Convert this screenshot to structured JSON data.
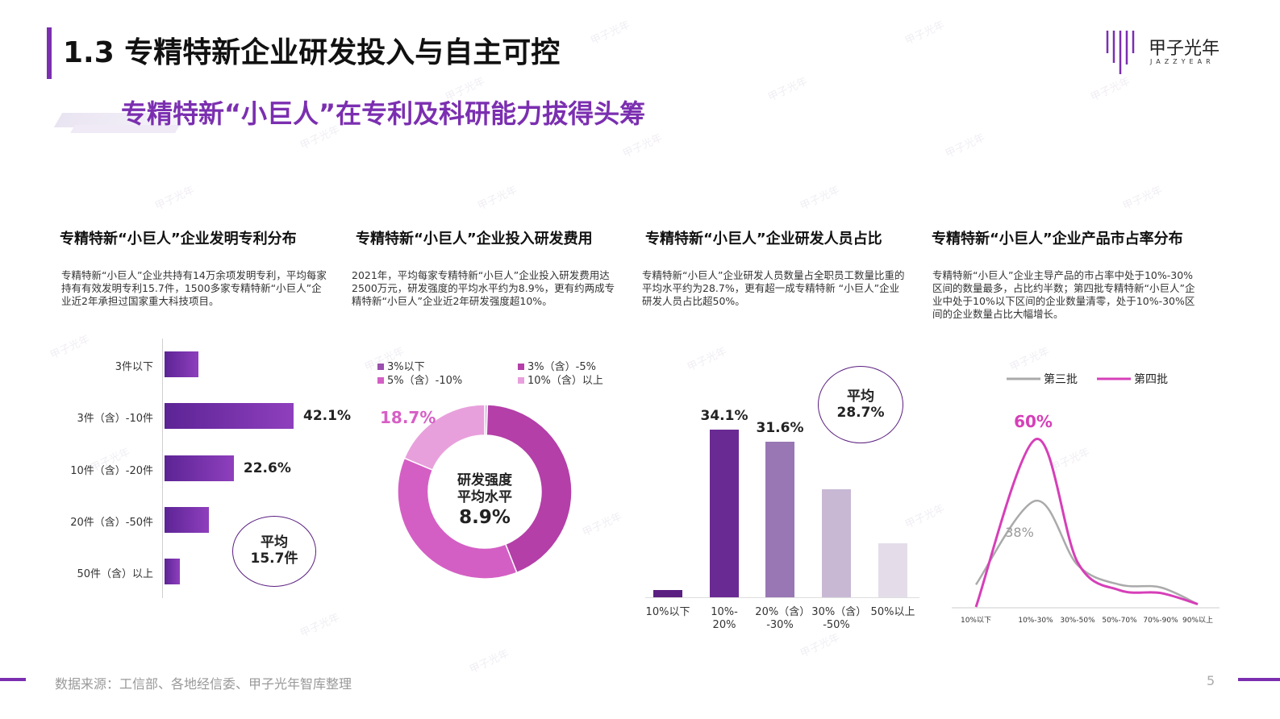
{
  "header": {
    "title": "1.3 专精特新企业研发投入与自主可控",
    "subtitle": "专精特新“小巨人”在专利及科研能力拔得头筹",
    "logo_text": "甲子光年",
    "logo_sub": "JAZZYEAR",
    "watermark": "甲子光年"
  },
  "sections": [
    {
      "title": "专精特新“小巨人”企业发明专利分布",
      "desc": "专精特新“小巨人”企业共持有14万余项发明专利，平均每家持有有效发明专利15.7件，1500多家专精特新“小巨人”企业近2年承担过国家重大科技项目。",
      "note": [
        "平均",
        "15.7件"
      ]
    },
    {
      "title": "专精特新“小巨人”企业投入研发费用",
      "desc": "2021年，平均每家专精特新“小巨人”企业投入研发费用达2500万元，研发强度的平均水平约为8.9%，更有约两成专精特新“小巨人”企业近2年研发强度超10%。",
      "center": [
        "研发强度",
        "平均水平",
        "8.9%"
      ]
    },
    {
      "title": "专精特新“小巨人”企业研发人员占比",
      "desc": "专精特新“小巨人”企业研发人员数量占全职员工数量比重的平均水平约为28.7%，更有超一成专精特新 “小巨人”企业研发人员占比超50%。",
      "note": [
        "平均",
        "28.7%"
      ]
    },
    {
      "title": "专精特新“小巨人”企业产品市占率分布",
      "desc": "专精特新“小巨人”企业主导产品的市占率中处于10%-30%区间的数量最多，占比约半数；第四批专精特新“小巨人”企业中处于10%以下区间的企业数量清零，处于10%-30%区间的企业数量占比大幅增长。"
    }
  ],
  "chart_data": [
    {
      "type": "bar",
      "orientation": "horizontal",
      "categories": [
        "3件以下",
        "3件（含）-10件",
        "10件（含）-20件",
        "20件（含）-50件",
        "50件（含）以上"
      ],
      "values": [
        11.0,
        42.1,
        22.6,
        14.5,
        5.0
      ],
      "value_labels": [
        "",
        "42.1%",
        "22.6%",
        "",
        ""
      ],
      "colors": {
        "bar_start": "#5c2495",
        "bar_end": "#8f3fbd"
      }
    },
    {
      "type": "pie",
      "donut": true,
      "slices": [
        {
          "name": "3%以下",
          "value": 0.5,
          "color": "#c9b2d8"
        },
        {
          "name": "3%（含）-5%",
          "value": 43.5,
          "color": "#b43fa8"
        },
        {
          "name": "5%（含）-10%",
          "value": 37.3,
          "color": "#d45fc4"
        },
        {
          "name": "10%（含）以上",
          "value": 18.7,
          "color": "#e8a0dc"
        }
      ],
      "labels": [
        "18.7%"
      ]
    },
    {
      "type": "bar",
      "categories": [
        "10%以下",
        "10%-20%",
        "20%（含）-30%",
        "30%（含）-50%",
        "50%以上"
      ],
      "values": [
        1.5,
        34.1,
        31.6,
        22.0,
        11.0
      ],
      "value_labels": [
        "",
        "34.1%",
        "31.6%",
        "",
        ""
      ],
      "colors": [
        "#5a1f80",
        "#6a2a93",
        "#9877b4",
        "#c8b8d4",
        "#e4dde9"
      ]
    },
    {
      "type": "line",
      "x": [
        "10%以下",
        "10%-30%",
        "30%-50%",
        "50%-70%",
        "70%-90%",
        "90%以上"
      ],
      "series": [
        {
          "name": "第三批",
          "values": [
            8,
            38,
            15,
            8,
            7,
            1
          ],
          "color": "#aaaaaa"
        },
        {
          "name": "第四批",
          "values": [
            0,
            60,
            16,
            6,
            5,
            1
          ],
          "color": "#d63fb8"
        }
      ],
      "labels": [
        "60%",
        "38%"
      ],
      "ylim": [
        0,
        65
      ]
    }
  ],
  "footer": {
    "source": "数据来源：工信部、各地经信委、甲子光年智库整理",
    "page": "5"
  }
}
